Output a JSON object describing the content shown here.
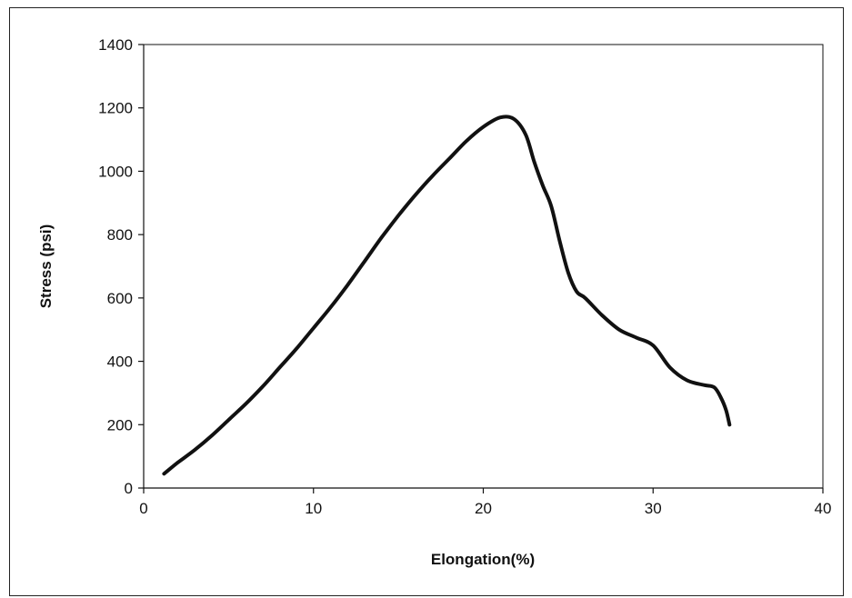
{
  "chart_data": {
    "type": "line",
    "title": "",
    "xlabel": "Elongation(%)",
    "ylabel": "Stress (psi)",
    "xlim": [
      0,
      40
    ],
    "ylim": [
      0,
      1400
    ],
    "xticks": [
      0,
      10,
      20,
      30,
      40
    ],
    "yticks": [
      0,
      200,
      400,
      600,
      800,
      1000,
      1200,
      1400
    ],
    "grid": false,
    "legend": "none",
    "series": [
      {
        "x": [
          1.2,
          2,
          3,
          4,
          5,
          6,
          7,
          8,
          9,
          10,
          11,
          12,
          13,
          14,
          15,
          16,
          17,
          18,
          19,
          20,
          21,
          21.8,
          22.5,
          23,
          23.5,
          24,
          24.5,
          25,
          25.5,
          26,
          27,
          28,
          29,
          30,
          31,
          32,
          33,
          33.6,
          34,
          34.3,
          34.5
        ],
        "y": [
          45,
          80,
          120,
          165,
          215,
          265,
          320,
          380,
          440,
          505,
          570,
          640,
          715,
          790,
          860,
          925,
          985,
          1040,
          1095,
          1140,
          1170,
          1165,
          1115,
          1030,
          955,
          890,
          780,
          680,
          620,
          600,
          545,
          500,
          475,
          450,
          380,
          340,
          325,
          318,
          285,
          245,
          200
        ]
      }
    ]
  }
}
